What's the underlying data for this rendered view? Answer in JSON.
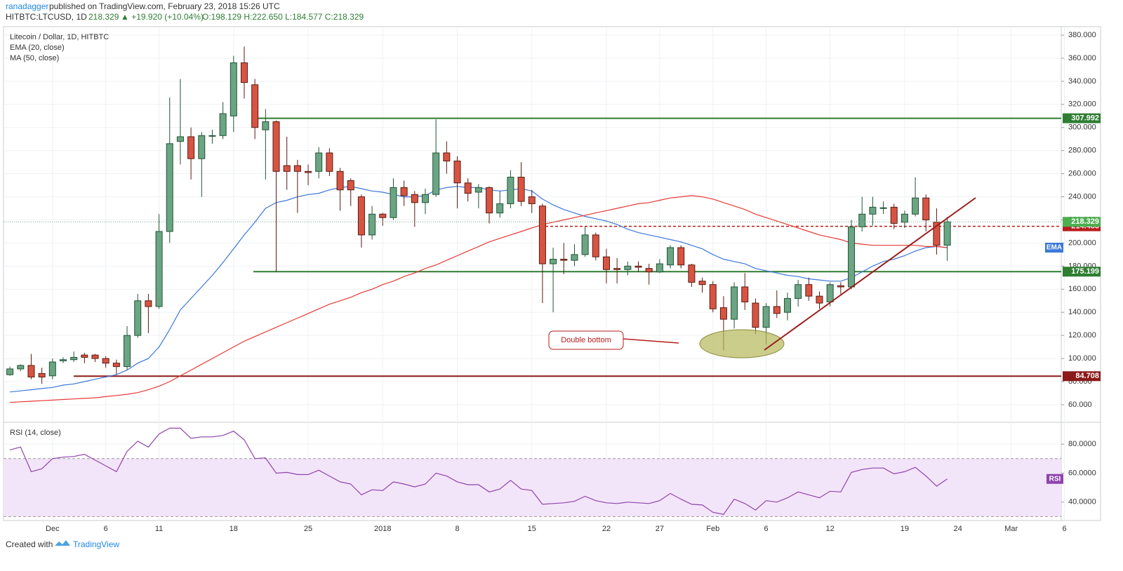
{
  "header": {
    "author": "ranadagger",
    "published": "published on TradingView.com, February 23, 2018 15:26 UTC",
    "symbol": "HITBTC:LTCUSD, 1D",
    "price": "218.329",
    "change": "▲ +19.920 (+10.04%)",
    "ohlc": "O:198.129 H:222.650 L:184.577 C:218.329"
  },
  "footer": {
    "created": "Created with",
    "brand": "TradingView"
  },
  "annotation": "Double bottom",
  "chart_data": [
    {
      "type": "candlestick",
      "title": "Litecoin / Dollar, 1D, HITBTC",
      "open": [
        86,
        91,
        94,
        87,
        85,
        98,
        99,
        103,
        103,
        100,
        96,
        93,
        120,
        150,
        145,
        210,
        288,
        292,
        273,
        293,
        293,
        310,
        356,
        337,
        298,
        305,
        267,
        267,
        262,
        262,
        278,
        262,
        254,
        240,
        207,
        225,
        222,
        248,
        242,
        235,
        242,
        278,
        271,
        252,
        244,
        248,
        226,
        234,
        257,
        240,
        232,
        182,
        186,
        185,
        190,
        207,
        188,
        178,
        177,
        180,
        178,
        175,
        181,
        196,
        181,
        167,
        164,
        144,
        134,
        162,
        148,
        127,
        145,
        140,
        152,
        164,
        154,
        149,
        163,
        162,
        214,
        225,
        230,
        231,
        218,
        225,
        239,
        218,
        198.129
      ],
      "high": [
        93,
        95,
        104,
        92,
        100,
        101,
        106,
        105,
        104,
        102,
        99,
        128,
        156,
        156,
        225,
        326,
        342,
        300,
        296,
        298,
        322,
        362,
        370,
        342,
        316,
        306,
        292,
        272,
        268,
        283,
        282,
        265,
        256,
        242,
        232,
        226,
        256,
        254,
        245,
        247,
        307,
        288,
        275,
        256,
        251,
        249,
        245,
        263,
        270,
        246,
        234,
        196,
        200,
        199,
        214,
        209,
        195,
        187,
        184,
        184,
        182,
        186,
        198,
        198,
        182,
        170,
        167,
        154,
        166,
        174,
        152,
        148,
        159,
        157,
        168,
        170,
        158,
        166,
        166,
        220,
        240,
        240,
        236,
        234,
        228,
        257,
        242,
        230,
        222.65
      ],
      "low": [
        85,
        89,
        82,
        78,
        82,
        96,
        97,
        96,
        97,
        92,
        86,
        90,
        118,
        122,
        143,
        200,
        268,
        255,
        240,
        286,
        290,
        296,
        325,
        290,
        255,
        175,
        246,
        226,
        250,
        256,
        258,
        228,
        232,
        196,
        203,
        215,
        220,
        232,
        214,
        225,
        240,
        260,
        230,
        236,
        230,
        217,
        222,
        230,
        232,
        226,
        148,
        140,
        173,
        180,
        188,
        185,
        165,
        165,
        172,
        175,
        164,
        174,
        178,
        178,
        162,
        157,
        140,
        107,
        126,
        142,
        121,
        112,
        135,
        133,
        145,
        150,
        143,
        145,
        156,
        160,
        210,
        215,
        225,
        212,
        213,
        223,
        210,
        190,
        184.577
      ],
      "close": [
        91,
        94,
        84,
        84,
        97,
        99,
        101,
        101,
        100,
        96,
        93,
        120,
        150,
        145,
        210,
        286,
        292,
        273,
        293,
        293,
        312,
        356,
        339,
        300,
        305,
        262,
        262,
        262,
        261,
        278,
        262,
        246,
        246,
        207,
        225,
        222,
        248,
        241,
        235,
        242,
        278,
        271,
        252,
        243,
        248,
        226,
        234,
        257,
        236,
        234,
        182,
        186,
        185,
        190,
        207,
        188,
        177,
        177,
        180,
        179,
        175,
        182,
        196,
        181,
        166,
        164,
        143,
        134,
        162,
        149,
        127,
        145,
        139,
        152,
        164,
        154,
        148,
        164,
        162,
        214,
        225,
        231,
        230.5,
        217,
        225,
        239,
        220,
        198,
        218.329
      ],
      "up_color": "#6ba583",
      "down_color": "#d75442",
      "indicators": [
        {
          "name": "EMA (20, close)",
          "badge": "EMA",
          "color": "#3c78d8",
          "values": [
            71,
            72,
            73,
            74,
            75,
            77,
            78,
            80,
            82,
            84,
            86,
            90,
            96,
            100,
            110,
            125,
            142,
            152,
            162,
            172,
            183,
            195,
            207,
            218,
            230,
            235,
            237,
            240,
            242,
            243,
            246,
            248,
            249,
            247,
            245,
            244,
            242,
            240,
            240,
            241,
            246,
            248,
            249,
            248,
            248,
            246,
            245,
            246,
            247,
            245,
            238,
            233,
            229,
            226,
            223,
            221,
            219,
            216,
            212,
            209,
            207,
            205,
            203,
            201,
            198,
            195,
            190,
            186,
            184,
            182,
            178,
            176,
            174,
            172,
            171,
            169,
            168,
            167,
            167,
            170,
            175,
            180,
            184,
            186,
            189,
            193,
            196,
            197,
            196
          ]
        },
        {
          "name": "MA (50, close)",
          "color": "#e53935",
          "values": [
            62,
            62.5,
            63,
            63.5,
            64,
            64.5,
            65,
            65.5,
            66,
            67,
            68,
            69,
            70.5,
            73,
            76,
            80,
            85,
            90,
            95,
            100,
            105,
            110,
            115,
            119,
            123,
            127,
            131,
            135,
            139,
            143,
            147,
            150,
            153,
            157,
            160,
            164,
            167,
            171,
            174,
            178,
            181,
            185,
            189,
            193,
            197,
            201,
            204,
            207,
            210,
            213,
            216,
            218,
            220,
            222,
            224,
            226,
            228,
            230,
            232,
            234,
            235,
            237,
            239,
            240,
            241,
            240,
            238,
            235,
            232,
            229,
            225,
            222,
            219,
            216,
            213,
            210,
            207,
            205,
            203,
            200,
            199,
            198,
            198,
            198,
            198,
            198,
            197,
            197,
            196
          ]
        }
      ],
      "levels": [
        {
          "value": 307.992,
          "color": "#2e7d32"
        },
        {
          "value": 175.199,
          "color": "#2e7d32"
        },
        {
          "value": 84.708,
          "color": "#8b1a1a"
        },
        {
          "value": 214.483,
          "color": "#b71c1c",
          "dashed": true
        }
      ],
      "last_color": "#4caf50",
      "ylim": [
        45.4,
        387.3
      ],
      "yticks": [
        {
          "value": 60,
          "label": "60.000"
        },
        {
          "value": 80,
          "label": "80.000"
        },
        {
          "value": 100,
          "label": "100.000"
        },
        {
          "value": 120,
          "label": "120.000"
        },
        {
          "value": 140,
          "label": "140.000"
        },
        {
          "value": 160,
          "label": "160.000"
        },
        {
          "value": 180,
          "label": "180.000"
        },
        {
          "value": 200,
          "label": "200.000"
        },
        {
          "value": 220,
          "label": "220.000"
        },
        {
          "value": 240,
          "label": "240.000"
        },
        {
          "value": 260,
          "label": "260.000"
        },
        {
          "value": 280,
          "label": "280.000"
        },
        {
          "value": 300,
          "label": "300.000"
        },
        {
          "value": 320,
          "label": "320.000"
        },
        {
          "value": 340,
          "label": "340.000"
        },
        {
          "value": 360,
          "label": "360.000"
        },
        {
          "value": 380,
          "label": "380.000"
        }
      ],
      "xlim": [
        -0.6,
        98.7
      ],
      "xticks": [
        {
          "value": 4,
          "label": "Dec"
        },
        {
          "value": 9,
          "label": "6"
        },
        {
          "value": 14,
          "label": "11"
        },
        {
          "value": 21,
          "label": "18"
        },
        {
          "value": 28,
          "label": "25"
        },
        {
          "value": 35,
          "label": "2018"
        },
        {
          "value": 42,
          "label": "8"
        },
        {
          "value": 49,
          "label": "15"
        },
        {
          "value": 56,
          "label": "22"
        },
        {
          "value": 61,
          "label": "27"
        },
        {
          "value": 66,
          "label": "Feb"
        },
        {
          "value": 71,
          "label": "6"
        },
        {
          "value": 77,
          "label": "12"
        },
        {
          "value": 84,
          "label": "19"
        },
        {
          "value": 89,
          "label": "24"
        },
        {
          "value": 94,
          "label": "Mar"
        },
        {
          "value": 99,
          "label": "6"
        }
      ],
      "grid": true
    },
    {
      "type": "line",
      "title": "RSI (14, close)",
      "series": [
        {
          "name": "RSI",
          "color": "#8e44ad",
          "values": [
            76,
            78,
            61,
            63,
            70,
            71,
            71.5,
            73,
            69,
            65,
            61,
            75,
            82,
            78,
            87,
            91,
            91,
            84,
            85,
            85,
            86,
            89,
            83,
            70,
            70.5,
            60,
            60.5,
            59,
            59,
            62,
            58,
            54,
            52.5,
            45,
            48.5,
            48,
            54,
            52.5,
            50.5,
            52.5,
            60,
            58,
            54,
            52,
            52,
            47,
            49,
            55,
            49,
            48,
            38.5,
            39,
            39.5,
            40.5,
            44,
            41,
            39.5,
            39,
            40,
            39.5,
            39,
            41,
            46,
            42,
            38.5,
            38,
            33,
            31.5,
            42,
            39,
            34.5,
            41,
            40,
            43,
            47,
            45,
            43,
            47.5,
            47,
            60.5,
            62.5,
            63.5,
            63.5,
            59.5,
            61,
            64,
            58,
            51,
            56
          ]
        }
      ],
      "band": [
        30,
        70
      ],
      "band_color": "#f3e5f9",
      "ylim": [
        27.3,
        94.6
      ],
      "yticks": [
        {
          "value": 40,
          "label": "40.0000"
        },
        {
          "value": 60,
          "label": "60.0000"
        },
        {
          "value": 80,
          "label": "80.0000"
        }
      ],
      "grid": true
    }
  ]
}
